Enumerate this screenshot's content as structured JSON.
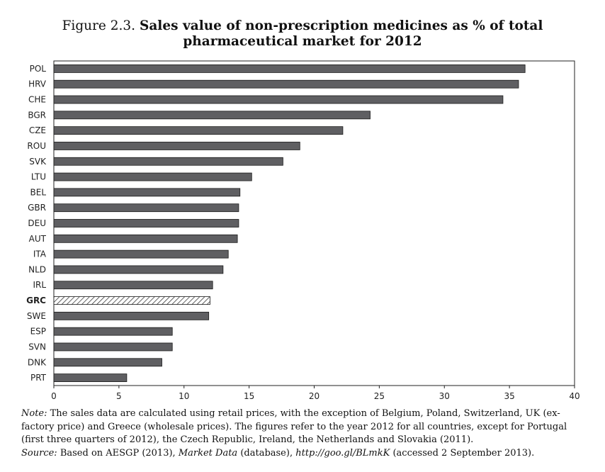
{
  "figure": {
    "number": "Figure 2.3.",
    "title": "Sales value of non-prescription medicines as % of total pharmaceutical market for 2012"
  },
  "chart_data": {
    "type": "bar",
    "orientation": "horizontal",
    "categories": [
      "POL",
      "HRV",
      "CHE",
      "BGR",
      "CZE",
      "ROU",
      "SVK",
      "LTU",
      "BEL",
      "GBR",
      "DEU",
      "AUT",
      "ITA",
      "NLD",
      "IRL",
      "GRC",
      "SWE",
      "ESP",
      "SVN",
      "DNK",
      "PRT"
    ],
    "values": [
      36.2,
      35.7,
      34.5,
      24.3,
      22.2,
      18.9,
      17.6,
      15.2,
      14.3,
      14.2,
      14.2,
      14.1,
      13.4,
      13.0,
      12.2,
      12.0,
      11.9,
      9.1,
      9.1,
      8.3,
      5.6
    ],
    "highlight": "GRC",
    "xlim": [
      0,
      40
    ],
    "xticks": [
      0,
      5,
      10,
      15,
      20,
      25,
      30,
      35,
      40
    ],
    "xlabel": "",
    "ylabel": "",
    "grid": false,
    "bar_color": "#5f5f62",
    "highlight_pattern": "diagonal-hatch"
  },
  "notes": {
    "note_label": "Note:",
    "note_text": " The sales data are calculated using retail prices, with the exception of Belgium, Poland, Switzerland, UK (ex-factory price) and Greece (wholesale prices). The figures refer to the year 2012 for all countries, except for Portugal (first three quarters of 2012), the Czech Republic, Ireland, the Netherlands and Slovakia (2011).",
    "source_label": "Source:",
    "source_prefix": "  Based on AESGP (2013), ",
    "source_italic": "Market Data",
    "source_mid": " (database), ",
    "source_url": "http://goo.gl/BLmkK",
    "source_suffix": " (accessed 2 September 2013)."
  }
}
